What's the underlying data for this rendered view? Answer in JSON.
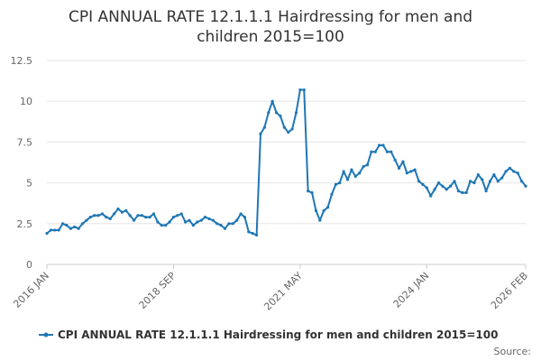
{
  "chart_data": {
    "type": "line",
    "title": "CPI ANNUAL RATE 12.1.1.1 Hairdressing for men and children 2015=100",
    "title_lines": [
      "CPI ANNUAL RATE 12.1.1.1 Hairdressing for men and",
      "children 2015=100"
    ],
    "xlabel": "",
    "ylabel": "",
    "ylim": [
      0,
      12.5
    ],
    "yticks": [
      "0",
      "2.5",
      "5",
      "7.5",
      "10",
      "12.5"
    ],
    "xticks": [
      "2016 JAN",
      "2018 SEP",
      "2021 MAY",
      "2024 JAN",
      "2026 FEB"
    ],
    "grid": "horizontal",
    "legend": "bottom",
    "credit": "Source:",
    "series": [
      {
        "name": "CPI ANNUAL RATE 12.1.1.1 Hairdressing for men and children 2015=100",
        "color": "#1f77b4",
        "start": "2016 JAN",
        "end": "2026 FEB",
        "values": [
          1.9,
          2.1,
          2.1,
          2.1,
          2.5,
          2.4,
          2.2,
          2.3,
          2.2,
          2.5,
          2.7,
          2.9,
          3.0,
          3.0,
          3.1,
          2.9,
          2.8,
          3.1,
          3.4,
          3.2,
          3.3,
          3.0,
          2.7,
          3.0,
          3.0,
          2.9,
          2.9,
          3.1,
          2.6,
          2.4,
          2.4,
          2.6,
          2.9,
          3.0,
          3.1,
          2.6,
          2.7,
          2.4,
          2.6,
          2.7,
          2.9,
          2.8,
          2.7,
          2.5,
          2.4,
          2.2,
          2.5,
          2.5,
          2.7,
          3.1,
          2.9,
          2.0,
          1.9,
          1.8,
          8.0,
          8.4,
          9.3,
          10.0,
          9.3,
          9.1,
          8.4,
          8.1,
          8.3,
          9.3,
          10.7,
          10.7,
          4.5,
          4.4,
          3.3,
          2.7,
          3.3,
          3.5,
          4.3,
          4.9,
          5.0,
          5.7,
          5.2,
          5.8,
          5.4,
          5.6,
          6.0,
          6.1,
          6.9,
          6.9,
          7.3,
          7.3,
          6.9,
          6.9,
          6.4,
          5.9,
          6.3,
          5.6,
          5.7,
          5.8,
          5.1,
          4.9,
          4.7,
          4.2,
          4.6,
          5.0,
          4.8,
          4.6,
          4.8,
          5.1,
          4.5,
          4.4,
          4.4,
          5.1,
          5.0,
          5.5,
          5.2,
          4.5,
          5.1,
          5.5,
          5.1,
          5.3,
          5.7,
          5.9,
          5.7,
          5.6,
          5.1,
          4.8
        ]
      }
    ]
  }
}
